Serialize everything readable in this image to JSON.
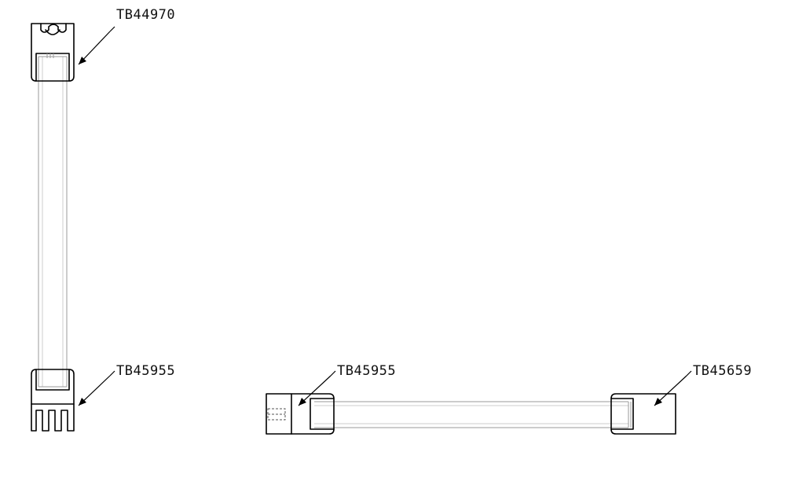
{
  "labels": {
    "top_left": "TB44970",
    "bottom_left": "TB45955",
    "bottom_middle": "TB45955",
    "bottom_right": "TB45659"
  },
  "colors": {
    "line": "#000000",
    "panel_edge": "#9a9a9a",
    "background": "#ffffff"
  }
}
